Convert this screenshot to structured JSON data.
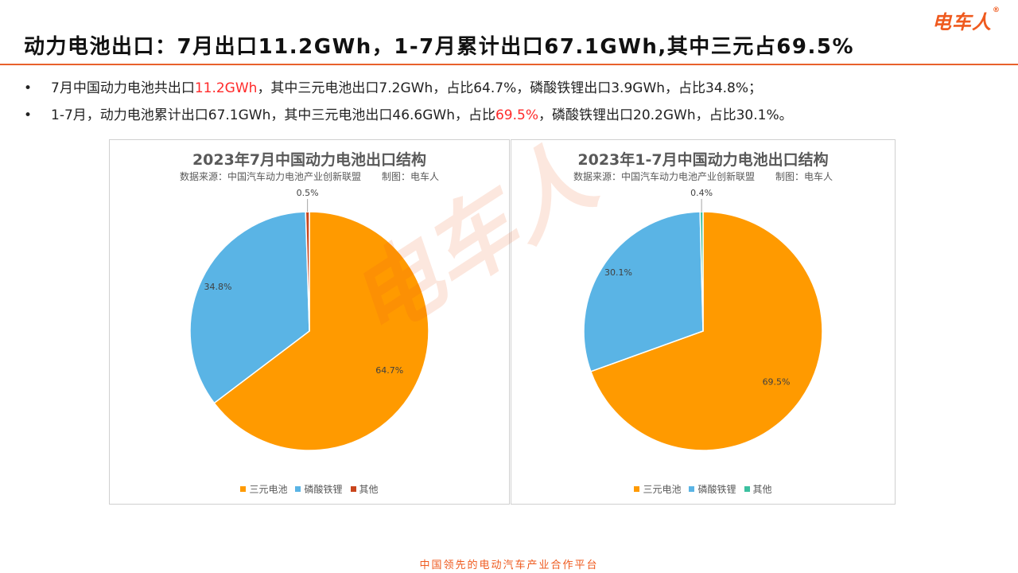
{
  "header": {
    "title": "动力电池出口：7月出口11.2GWh，1-7月累计出口67.1GWh,其中三元占69.5%",
    "logo": "电车人",
    "logo_mark": "®"
  },
  "bullets": [
    {
      "marker": "•",
      "pre": "7月中国动力电池共出口",
      "highlight": "11.2GWh",
      "post": "，其中三元电池出口7.2GWh，占比64.7%，磷酸铁锂出口3.9GWh，占比34.8%；"
    },
    {
      "marker": "•",
      "pre": "1-7月，动力电池累计出口67.1GWh，其中三元电池出口46.6GWh，占比",
      "highlight": "69.5%",
      "post": "，磷酸铁锂出口20.2GWh，占比30.1%。"
    }
  ],
  "watermark": "电车人",
  "colors": {
    "accent": "#e8612c",
    "highlight": "#ff2a2a",
    "ternary": "#ff9a00",
    "lfp": "#5ab4e5",
    "other_left": "#c9451c",
    "other_right": "#3cc0a0"
  },
  "chart_data": [
    {
      "type": "pie",
      "title": "2023年7月中国动力电池出口结构",
      "source_left": "数据来源：中国汽车动力电池产业创新联盟",
      "source_right": "制图：电车人",
      "legend_position": "bottom",
      "slices": [
        {
          "name": "三元电池",
          "value": 64.7,
          "label": "64.7%",
          "color": "#ff9a00"
        },
        {
          "name": "磷酸铁锂",
          "value": 34.8,
          "label": "34.8%",
          "color": "#5ab4e5"
        },
        {
          "name": "其他",
          "value": 0.5,
          "label": "0.5%",
          "color": "#c9451c"
        }
      ]
    },
    {
      "type": "pie",
      "title": "2023年1-7月中国动力电池出口结构",
      "source_left": "数据来源：中国汽车动力电池产业创新联盟",
      "source_right": "制图：电车人",
      "legend_position": "bottom",
      "slices": [
        {
          "name": "三元电池",
          "value": 69.5,
          "label": "69.5%",
          "color": "#ff9a00"
        },
        {
          "name": "磷酸铁锂",
          "value": 30.1,
          "label": "30.1%",
          "color": "#5ab4e5"
        },
        {
          "name": "其他",
          "value": 0.4,
          "label": "0.4%",
          "color": "#3cc0a0"
        }
      ]
    }
  ],
  "footer": "中国领先的电动汽车产业合作平台"
}
